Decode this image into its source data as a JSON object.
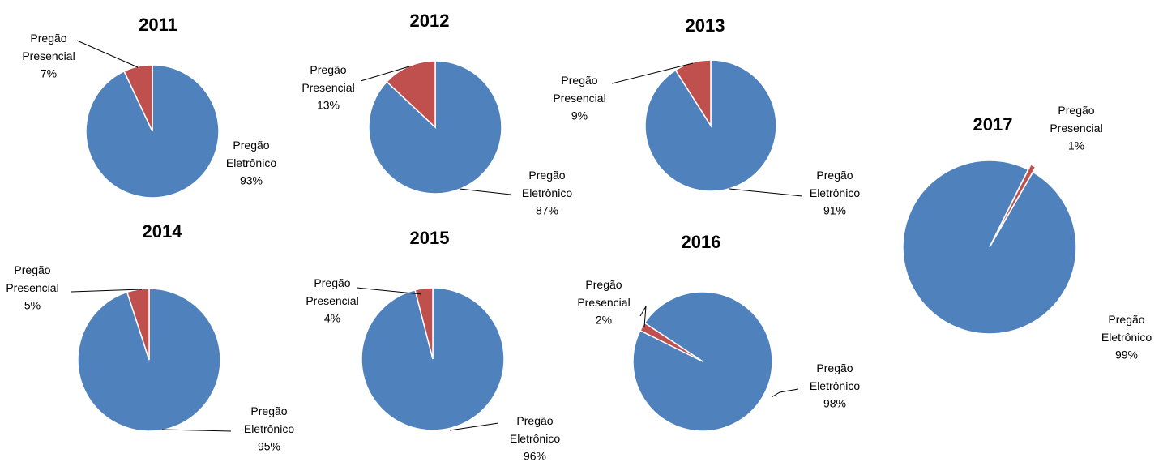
{
  "chart_data": [
    {
      "type": "pie",
      "title": "2011",
      "categories": [
        "Pregão Eletrônico",
        "Pregão Presencial"
      ],
      "values": [
        93,
        7
      ],
      "value_labels": [
        "93%",
        "7%"
      ],
      "colors": [
        "#4f81bd",
        "#c0504d"
      ]
    },
    {
      "type": "pie",
      "title": "2012",
      "categories": [
        "Pregão Eletrônico",
        "Pregão Presencial"
      ],
      "values": [
        87,
        13
      ],
      "value_labels": [
        "87%",
        "13%"
      ],
      "colors": [
        "#4f81bd",
        "#c0504d"
      ]
    },
    {
      "type": "pie",
      "title": "2013",
      "categories": [
        "Pregão Eletrônico",
        "Pregão Presencial"
      ],
      "values": [
        91,
        9
      ],
      "value_labels": [
        "91%",
        "9%"
      ],
      "colors": [
        "#4f81bd",
        "#c0504d"
      ]
    },
    {
      "type": "pie",
      "title": "2014",
      "categories": [
        "Pregão Eletrônico",
        "Pregão Presencial"
      ],
      "values": [
        95,
        5
      ],
      "value_labels": [
        "95%",
        "5%"
      ],
      "colors": [
        "#4f81bd",
        "#c0504d"
      ]
    },
    {
      "type": "pie",
      "title": "2015",
      "categories": [
        "Pregão Eletrônico",
        "Pregão Presencial"
      ],
      "values": [
        96,
        4
      ],
      "value_labels": [
        "96%",
        "4%"
      ],
      "colors": [
        "#4f81bd",
        "#c0504d"
      ]
    },
    {
      "type": "pie",
      "title": "2016",
      "categories": [
        "Pregão Eletrônico",
        "Pregão Presencial"
      ],
      "values": [
        98,
        2
      ],
      "value_labels": [
        "98%",
        "2%"
      ],
      "colors": [
        "#4f81bd",
        "#c0504d"
      ]
    },
    {
      "type": "pie",
      "title": "2017",
      "categories": [
        "Pregão Eletrônico",
        "Pregão Presencial"
      ],
      "values": [
        99,
        1
      ],
      "value_labels": [
        "99%",
        "1%"
      ],
      "colors": [
        "#4f81bd",
        "#c0504d"
      ]
    }
  ]
}
